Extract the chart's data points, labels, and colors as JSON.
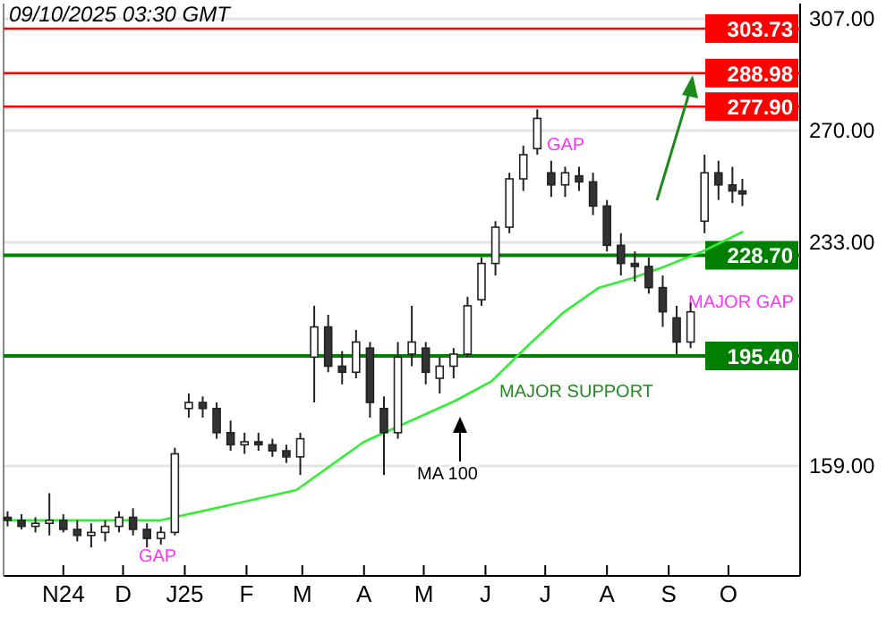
{
  "chart_data": {
    "type": "candlestick",
    "title": "09/10/2025 03:30 GMT",
    "x": [
      "2024-10-04",
      "2024-10-11",
      "2024-10-18",
      "2024-10-25",
      "2024-11-01",
      "2024-11-08",
      "2024-11-15",
      "2024-11-22",
      "2024-11-29",
      "2024-12-06",
      "2024-12-13",
      "2024-12-20",
      "2024-12-27",
      "2025-01-03",
      "2025-01-10",
      "2025-01-17",
      "2025-01-24",
      "2025-01-31",
      "2025-02-07",
      "2025-02-14",
      "2025-02-21",
      "2025-02-28",
      "2025-03-07",
      "2025-03-14",
      "2025-03-21",
      "2025-03-28",
      "2025-04-04",
      "2025-04-11",
      "2025-04-18",
      "2025-04-25",
      "2025-05-02",
      "2025-05-09",
      "2025-05-16",
      "2025-05-23",
      "2025-05-30",
      "2025-06-06",
      "2025-06-13",
      "2025-06-20",
      "2025-06-27",
      "2025-07-04",
      "2025-07-11",
      "2025-07-18",
      "2025-07-25",
      "2025-08-01",
      "2025-08-08",
      "2025-08-15",
      "2025-08-22",
      "2025-08-29",
      "2025-09-05",
      "2025-09-12",
      "2025-09-19",
      "2025-09-26",
      "2025-10-03",
      "2025-10-08"
    ],
    "ohlc": [
      [
        142,
        144,
        139,
        141
      ],
      [
        141,
        143,
        138,
        139
      ],
      [
        139,
        142,
        137,
        140
      ],
      [
        140,
        150,
        136,
        141
      ],
      [
        141,
        143,
        137,
        138
      ],
      [
        138,
        141,
        134,
        136
      ],
      [
        136,
        140,
        132,
        137
      ],
      [
        137,
        141,
        134,
        139
      ],
      [
        139,
        144,
        137,
        142
      ],
      [
        142,
        145,
        136,
        138
      ],
      [
        138,
        140,
        132,
        135
      ],
      [
        135,
        139,
        133,
        137
      ],
      [
        137,
        165,
        136,
        163
      ],
      [
        178,
        183,
        175,
        180
      ],
      [
        180,
        182,
        175,
        178
      ],
      [
        178,
        180,
        168,
        170
      ],
      [
        170,
        174,
        164,
        166
      ],
      [
        166,
        170,
        163,
        167
      ],
      [
        167,
        170,
        164,
        166
      ],
      [
        166,
        168,
        162,
        164
      ],
      [
        164,
        166,
        160,
        162
      ],
      [
        162,
        170,
        156,
        168
      ],
      [
        195,
        212,
        180,
        205
      ],
      [
        205,
        209,
        190,
        192
      ],
      [
        192,
        197,
        186,
        190
      ],
      [
        190,
        204,
        188,
        200
      ],
      [
        198,
        200,
        175,
        180
      ],
      [
        178,
        182,
        156,
        170
      ],
      [
        170,
        200,
        168,
        195
      ],
      [
        196,
        212,
        192,
        200
      ],
      [
        198,
        200,
        186,
        190
      ],
      [
        188,
        195,
        183,
        192
      ],
      [
        192,
        198,
        188,
        196
      ],
      [
        196,
        215,
        195,
        212
      ],
      [
        214,
        228,
        212,
        226
      ],
      [
        226,
        240,
        222,
        238
      ],
      [
        238,
        256,
        236,
        254
      ],
      [
        254,
        265,
        250,
        262
      ],
      [
        264,
        277,
        262,
        274
      ],
      [
        256,
        260,
        248,
        252
      ],
      [
        252,
        258,
        248,
        256
      ],
      [
        255,
        258,
        250,
        253
      ],
      [
        253,
        256,
        242,
        245
      ],
      [
        245,
        247,
        230,
        232
      ],
      [
        232,
        236,
        222,
        226
      ],
      [
        226,
        230,
        220,
        225
      ],
      [
        225,
        228,
        216,
        218
      ],
      [
        218,
        222,
        205,
        210
      ],
      [
        208,
        212,
        196,
        200
      ],
      [
        200,
        213,
        198,
        210
      ],
      [
        240,
        262,
        236,
        256
      ],
      [
        256,
        260,
        247,
        252
      ],
      [
        252,
        258,
        246,
        250
      ],
      [
        250,
        254,
        245,
        249
      ]
    ],
    "series": [
      {
        "type": "line",
        "color": "#33ee33",
        "x": [
          "2024-10-02",
          "2024-12-20",
          "2025-02-26",
          "2025-04-01",
          "2025-05-17",
          "2025-06-04",
          "2025-06-21",
          "2025-07-10",
          "2025-07-28",
          "2025-08-13",
          "2025-08-30",
          "2025-09-18",
          "2025-10-08"
        ],
        "values": [
          141,
          141,
          151,
          167,
          180.6,
          187,
          198,
          209.7,
          218,
          221,
          225,
          230,
          236.4
        ]
      }
    ],
    "xlim": [
      "2024-10-02",
      "2025-11-06"
    ],
    "xticks": [
      {
        "value": "2024-11-01",
        "label": "N24"
      },
      {
        "value": "2024-12-01",
        "label": "D"
      },
      {
        "value": "2025-01-01",
        "label": "J25"
      },
      {
        "value": "2025-02-01",
        "label": "F"
      },
      {
        "value": "2025-03-01",
        "label": "M"
      },
      {
        "value": "2025-04-01",
        "label": "A"
      },
      {
        "value": "2025-05-01",
        "label": "M"
      },
      {
        "value": "2025-06-01",
        "label": "J"
      },
      {
        "value": "2025-07-01",
        "label": "J"
      },
      {
        "value": "2025-08-01",
        "label": "A"
      },
      {
        "value": "2025-09-01",
        "label": "S"
      },
      {
        "value": "2025-10-01",
        "label": "O"
      }
    ],
    "ylim": [
      122.6,
      312
    ],
    "yticks": [
      {
        "value": 159,
        "label": "159.00"
      },
      {
        "value": 233,
        "label": "233.00"
      },
      {
        "value": 270,
        "label": "270.00"
      },
      {
        "value": 307,
        "label": "307.00"
      }
    ],
    "grid": "y",
    "ref_lines": [
      {
        "axis": "y",
        "value": 303.73,
        "label": "303.73",
        "color": "#ff0000"
      },
      {
        "axis": "y",
        "value": 288.98,
        "label": "288.98",
        "color": "#ff0000"
      },
      {
        "axis": "y",
        "value": 277.9,
        "label": "277.90",
        "color": "#ff0000"
      },
      {
        "axis": "y",
        "value": 228.7,
        "label": "228.70",
        "color": "#008000"
      },
      {
        "axis": "y",
        "value": 195.4,
        "label": "195.40",
        "color": "#008000"
      }
    ],
    "annotations": [
      "GAP",
      "GAP",
      "MAJOR GAP",
      "MAJOR SUPPORT",
      "MA 100"
    ]
  }
}
